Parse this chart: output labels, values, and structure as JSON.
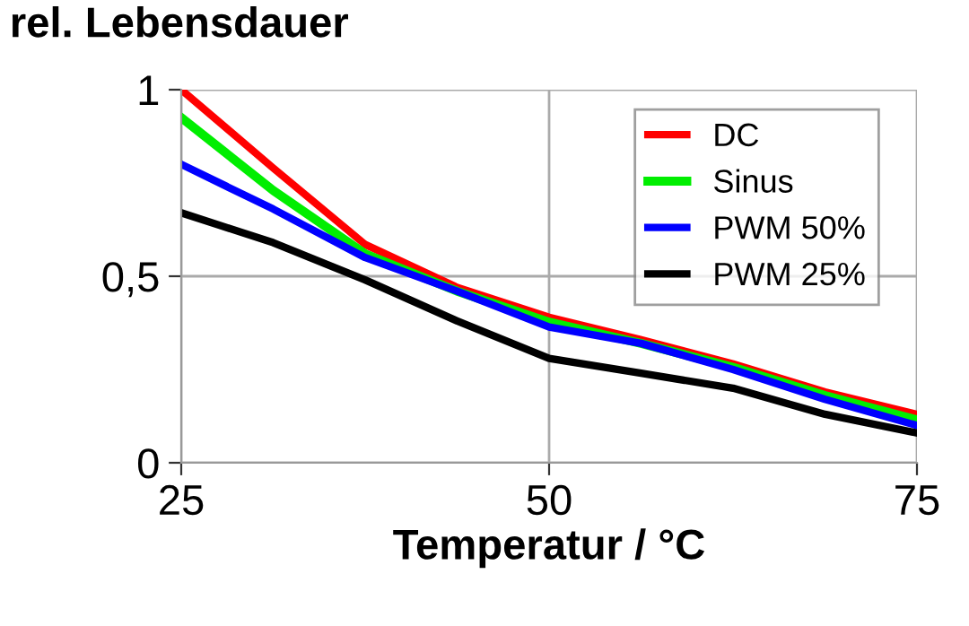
{
  "chart_data": {
    "type": "line",
    "ylabel": "rel. Lebensdauer",
    "xlabel": "Temperatur / °C",
    "x": [
      25,
      31.25,
      37.5,
      43.75,
      50,
      56.25,
      62.5,
      68.75,
      75
    ],
    "series": [
      {
        "name": "DC",
        "color": "#ff0000",
        "values": [
          1.0,
          0.79,
          0.585,
          0.47,
          0.39,
          0.33,
          0.265,
          0.19,
          0.13
        ]
      },
      {
        "name": "Sinus",
        "color": "#00ee00",
        "values": [
          0.925,
          0.73,
          0.56,
          0.46,
          0.377,
          0.32,
          0.256,
          0.18,
          0.115
        ]
      },
      {
        "name": "PWM 50%",
        "color": "#0000ff",
        "values": [
          0.8,
          0.68,
          0.55,
          0.46,
          0.364,
          0.32,
          0.25,
          0.17,
          0.1
        ]
      },
      {
        "name": "PWM 25%",
        "color": "#000000",
        "values": [
          0.67,
          0.59,
          0.49,
          0.38,
          0.28,
          0.24,
          0.2,
          0.13,
          0.08
        ]
      }
    ],
    "xlim": [
      25,
      75
    ],
    "xticks": [
      25,
      50,
      75
    ],
    "ylim": [
      0,
      1
    ],
    "yticks": [
      0,
      {
        "value": 0.5,
        "label": "0,5"
      },
      1
    ],
    "grid": true,
    "legend": "top right",
    "marker": "none",
    "line_style": "solid"
  }
}
